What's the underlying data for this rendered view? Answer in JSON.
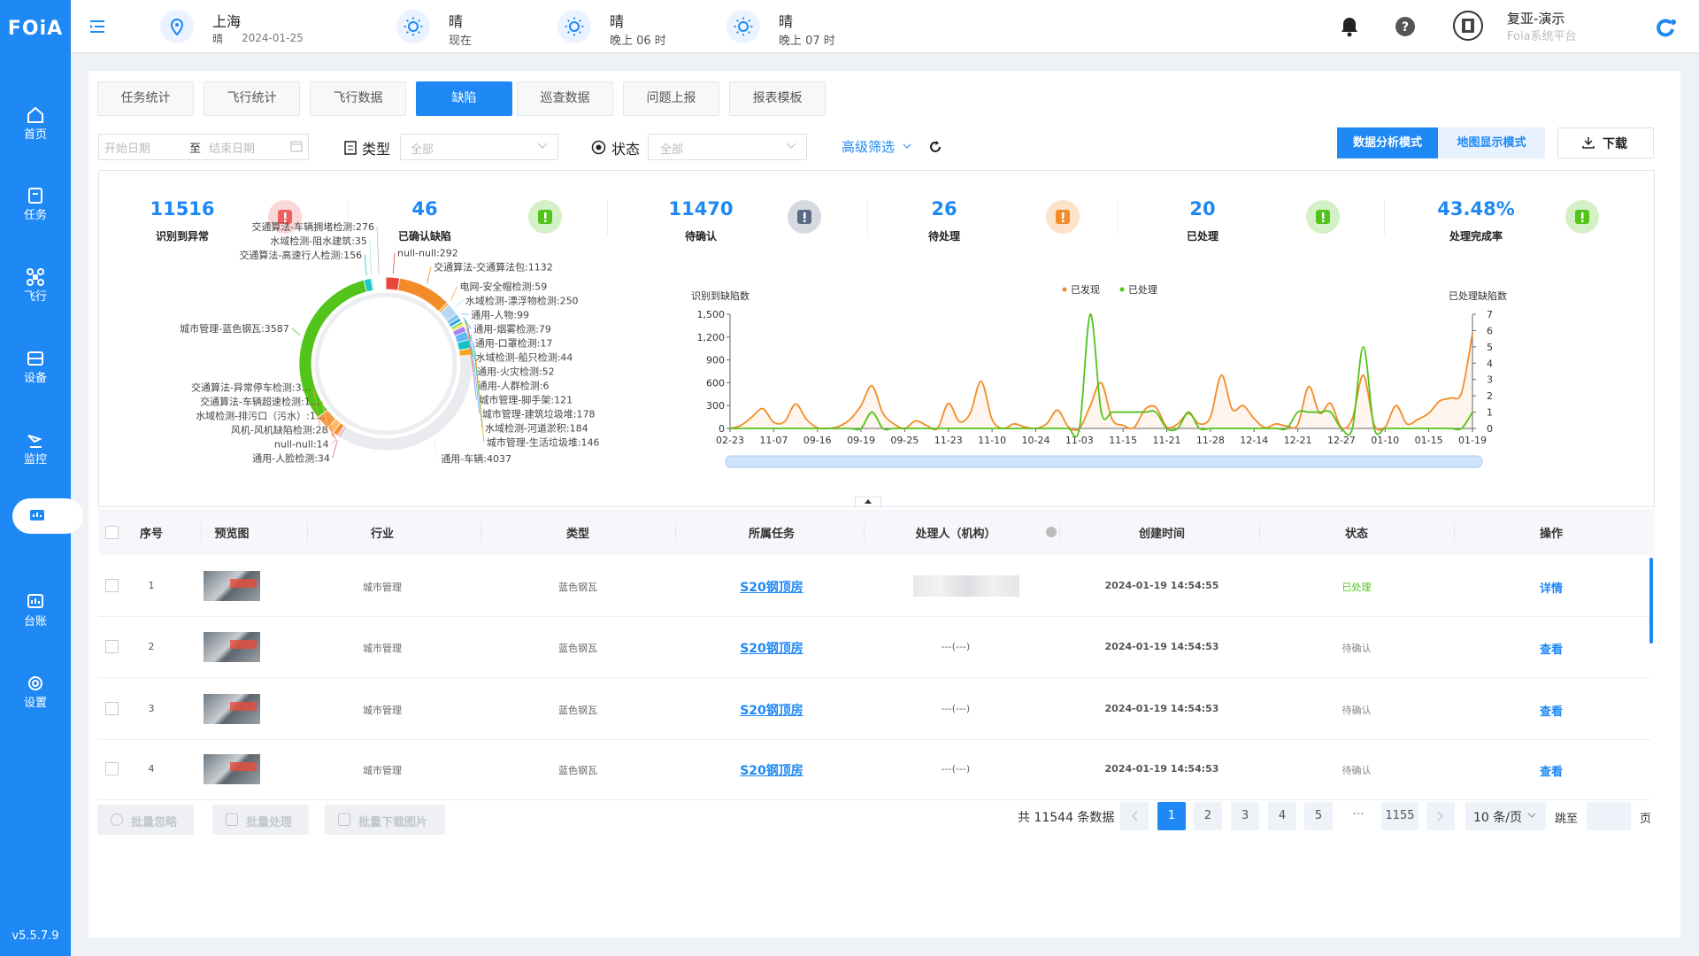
{
  "sidebar": {
    "logo": "FOiA",
    "items": [
      "首页",
      "任务",
      "飞行",
      "设备",
      "监控",
      "台账",
      "设置"
    ],
    "version": "v5.5.7.9"
  },
  "header": {
    "city": "上海",
    "weather": "晴",
    "date": "2024-01-25",
    "forecast": [
      {
        "weather": "晴",
        "time": "现在"
      },
      {
        "weather": "晴",
        "time": "晚上 06 时"
      },
      {
        "weather": "晴",
        "time": "晚上 07 时"
      }
    ],
    "user": {
      "name": "复亚-演示",
      "org": "Foia系统平台"
    }
  },
  "tabs": [
    "任务统计",
    "飞行统计",
    "飞行数据",
    "缺陷",
    "巡查数据",
    "问题上报",
    "报表模板"
  ],
  "active_tab": 3,
  "filters": {
    "start_date": "开始日期",
    "to": "至",
    "end_date": "结束日期",
    "type_label": "类型",
    "type_value": "全部",
    "status_label": "状态",
    "status_value": "全部",
    "advanced": "高级筛选",
    "modes": [
      "数据分析模式",
      "地图显示模式"
    ],
    "active_mode": 0,
    "download": "下载"
  },
  "stats": [
    {
      "value": "11516",
      "label": "识别到异常",
      "color": "#f06060"
    },
    {
      "value": "46",
      "label": "已确认缺陷",
      "color": "#52c41a"
    },
    {
      "value": "11470",
      "label": "待确认",
      "color": "#5b6b85"
    },
    {
      "value": "26",
      "label": "待处理",
      "color": "#f28c28"
    },
    {
      "value": "20",
      "label": "已处理",
      "color": "#52c41a"
    },
    {
      "value": "43.48%",
      "label": "处理完成率",
      "color": "#52c41a"
    }
  ],
  "chart_data": [
    {
      "type": "pie",
      "donut": true,
      "values": [
        292,
        1132,
        59,
        250,
        99,
        79,
        17,
        44,
        52,
        6,
        121,
        178,
        184,
        146,
        4037,
        34,
        14,
        28,
        100,
        150,
        300,
        3587,
        156,
        35,
        276
      ],
      "value_labels": [
        "null-null:292",
        "交通算法-交通算法包:1132",
        "电网-安全帽检测:59",
        "水域检测-漂浮物检测:250",
        "通用-人物:99",
        "通用-烟雾检测:79",
        "通用-口罩检测:17",
        "水域检测-船只检测:44",
        "通用-火灾检测:52",
        "通用-人群检测:6",
        "城市管理-脚手架:121",
        "城市管理-建筑垃圾堆:178",
        "水域检测-河道淤积:184",
        "城市管理-生活垃圾堆:146",
        "通用-车辆:4037",
        "通用-人脸检测:34",
        "null-null:14",
        "风机-风机缺陷检测:28",
        "水域检测-排污口（污水）:1...",
        "交通算法-车辆超速检测:1...",
        "交通算法-异常停车检测:3...",
        "城市管理-蓝色钢瓦:3587",
        "交通算法-高速行人检测:156",
        "水域检测-阻水建筑:35",
        "交通算法-车辆拥堵检测:276"
      ],
      "colors": [
        "#e8453c",
        "#f28c28",
        "#f5b342",
        "#b7d7f2",
        "#7cc6f0",
        "#36a3e8",
        "#2fc6c8",
        "#52c41a",
        "#f5d742",
        "#ff8f5a",
        "#a67cf0",
        "#5fb8f5",
        "#13c2c2",
        "#f5a623",
        "#e9ebef",
        "#e85d9a",
        "#f78fb3",
        "#d9534f",
        "#f28c28",
        "#ffb86b",
        "#f39c4a",
        "#52c41a",
        "#1fc8c8",
        "#a0e6e6",
        "#ffffff"
      ]
    },
    {
      "type": "line",
      "smooth": true,
      "ylabel": "识别到缺陷数",
      "y2label": "已处理缺陷数",
      "categories": [
        "02-23",
        null,
        null,
        null,
        "11-07",
        null,
        null,
        null,
        "09-16",
        null,
        null,
        null,
        "09-19",
        null,
        null,
        null,
        "09-25",
        null,
        null,
        null,
        "11-23",
        null,
        null,
        null,
        "11-10",
        null,
        null,
        null,
        "10-24",
        null,
        null,
        null,
        "11-03",
        null,
        null,
        null,
        "11-15",
        null,
        null,
        null,
        "11-21",
        null,
        null,
        null,
        "11-28",
        null,
        null,
        null,
        "12-14",
        null,
        null,
        null,
        "12-21",
        null,
        null,
        null,
        "12-27",
        null,
        null,
        null,
        "01-10",
        null,
        null,
        null,
        "01-15",
        null,
        null,
        null,
        "01-19"
      ],
      "series": [
        {
          "name": "已发现",
          "color": "#f28c28",
          "axis": "y",
          "area": true,
          "values": [
            0,
            40,
            150,
            260,
            80,
            90,
            320,
            120,
            10,
            0,
            30,
            120,
            300,
            560,
            200,
            60,
            0,
            100,
            40,
            0,
            330,
            90,
            200,
            620,
            120,
            0,
            60,
            20,
            0,
            60,
            240,
            20,
            0,
            300,
            600,
            120,
            40,
            10,
            250,
            280,
            20,
            60,
            200,
            60,
            150,
            700,
            250,
            300,
            130,
            10,
            60,
            30,
            50,
            550,
            200,
            330,
            10,
            130,
            700,
            50,
            20,
            300,
            60,
            120,
            200,
            360,
            400,
            470,
            1250
          ]
        },
        {
          "name": "已处理",
          "color": "#52c41a",
          "axis": "y2",
          "values": [
            0,
            0,
            0,
            0,
            0,
            0,
            0,
            0,
            0,
            0,
            0,
            0,
            0,
            1,
            0,
            0,
            0,
            0,
            0,
            0,
            0,
            0,
            0,
            0,
            0,
            0,
            0,
            0,
            0,
            0,
            0,
            0,
            0,
            7,
            1,
            1,
            1,
            1,
            1,
            1,
            0,
            0,
            1,
            0,
            0,
            0,
            0,
            0,
            0,
            0,
            0,
            0,
            1,
            1,
            1,
            1,
            0,
            0,
            5,
            0,
            0,
            0,
            0,
            0,
            0,
            0,
            0,
            0,
            1
          ]
        }
      ],
      "ylim": [
        0,
        1500
      ],
      "yticks": [
        0,
        300,
        600,
        900,
        {
          "value": 1200,
          "label": "1,200"
        },
        {
          "value": 1500,
          "label": "1,500"
        }
      ],
      "y2lim": [
        0,
        7
      ],
      "y2ticks": [
        0,
        1,
        2,
        3,
        4,
        5,
        6,
        7
      ],
      "legend": "top"
    }
  ],
  "table": {
    "headers": [
      "序号",
      "预览图",
      "行业",
      "类型",
      "所属任务",
      "处理人（机构）",
      "创建时间",
      "状态",
      "操作"
    ],
    "rows": [
      {
        "no": "1",
        "industry": "城市管理",
        "type": "蓝色钢瓦",
        "task": "S20钢顶房",
        "time": "2024-01-19 14:54:55",
        "status": "已处理",
        "status_color": "#52c41a",
        "action": "详情"
      },
      {
        "no": "2",
        "industry": "城市管理",
        "type": "蓝色钢瓦",
        "task": "S20钢顶房",
        "handler": "---(---)",
        "time": "2024-01-19 14:54:53",
        "status": "待确认",
        "status_color": "#888888",
        "action": "查看"
      },
      {
        "no": "3",
        "industry": "城市管理",
        "type": "蓝色钢瓦",
        "task": "S20钢顶房",
        "handler": "---(---)",
        "time": "2024-01-19 14:54:53",
        "status": "待确认",
        "status_color": "#888888",
        "action": "查看"
      },
      {
        "no": "4",
        "industry": "城市管理",
        "type": "蓝色钢瓦",
        "task": "S20钢顶房",
        "handler": "---(---)",
        "time": "2024-01-19 14:54:53",
        "status": "待确认",
        "status_color": "#888888",
        "action": "查看"
      }
    ]
  },
  "batch_buttons": [
    "批量忽略",
    "批量处理",
    "批量下载图片"
  ],
  "pagination": {
    "total": "共 11544 条数据",
    "pages": [
      "1",
      "2",
      "3",
      "4",
      "5",
      "1155"
    ],
    "ellipsis": "···",
    "current": 0,
    "page_size": "10 条/页",
    "jump": "跳至",
    "page_unit": "页"
  }
}
